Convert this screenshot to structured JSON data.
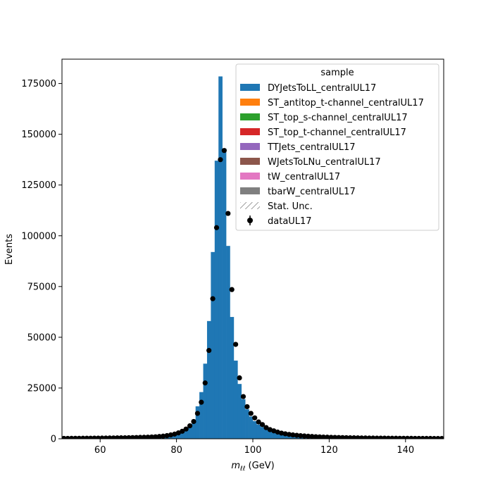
{
  "chart_data": {
    "type": "bar",
    "xlabel_main": "m",
    "xlabel_sub": "ℓℓ",
    "xlabel_unit": " (GeV)",
    "ylabel": "Events",
    "xlim": [
      50,
      150
    ],
    "ylim": [
      0,
      187000
    ],
    "bin_width": 1,
    "x_ticks": [
      60,
      80,
      100,
      120,
      140
    ],
    "y_ticks": [
      0,
      25000,
      50000,
      75000,
      100000,
      125000,
      150000,
      175000
    ],
    "legend_title": "sample",
    "legend_position": "top-right",
    "legend": [
      {
        "label": "DYJetsToLL_centralUL17",
        "kind": "patch",
        "color": "#1f77b4"
      },
      {
        "label": "ST_antitop_t-channel_centralUL17",
        "kind": "patch",
        "color": "#ff7f0e"
      },
      {
        "label": "ST_top_s-channel_centralUL17",
        "kind": "patch",
        "color": "#2ca02c"
      },
      {
        "label": "ST_top_t-channel_centralUL17",
        "kind": "patch",
        "color": "#d62728"
      },
      {
        "label": "TTJets_centralUL17",
        "kind": "patch",
        "color": "#9467bd"
      },
      {
        "label": "WJetsToLNu_centralUL17",
        "kind": "patch",
        "color": "#8c564b"
      },
      {
        "label": "tW_centralUL17",
        "kind": "patch",
        "color": "#e377c2"
      },
      {
        "label": "tbarW_centralUL17",
        "kind": "patch",
        "color": "#7f7f7f"
      },
      {
        "label": "Stat. Unc.",
        "kind": "hatch",
        "color": "#555555"
      },
      {
        "label": "dataUL17",
        "kind": "errorbar",
        "color": "#000000"
      }
    ],
    "bin_edges_start": [
      50,
      51,
      52,
      53,
      54,
      55,
      56,
      57,
      58,
      59,
      60,
      61,
      62,
      63,
      64,
      65,
      66,
      67,
      68,
      69,
      70,
      71,
      72,
      73,
      74,
      75,
      76,
      77,
      78,
      79,
      80,
      81,
      82,
      83,
      84,
      85,
      86,
      87,
      88,
      89,
      90,
      91,
      92,
      93,
      94,
      95,
      96,
      97,
      98,
      99,
      100,
      101,
      102,
      103,
      104,
      105,
      106,
      107,
      108,
      109,
      110,
      111,
      112,
      113,
      114,
      115,
      116,
      117,
      118,
      119,
      120,
      121,
      122,
      123,
      124,
      125,
      126,
      127,
      128,
      129,
      130,
      131,
      132,
      133,
      134,
      135,
      136,
      137,
      138,
      139,
      140,
      141,
      142,
      143,
      144,
      145,
      146,
      147,
      148,
      149
    ],
    "series": [
      {
        "name": "DYJetsToLL_centralUL17",
        "color": "#1f77b4",
        "values": [
          200,
          210,
          220,
          230,
          240,
          260,
          280,
          300,
          320,
          340,
          360,
          380,
          400,
          420,
          450,
          480,
          510,
          550,
          600,
          650,
          700,
          760,
          830,
          910,
          1000,
          1150,
          1350,
          1600,
          1950,
          2400,
          3000,
          3900,
          5000,
          6700,
          9500,
          16000,
          23000,
          37000,
          58000,
          92000,
          137000,
          178500,
          143000,
          95000,
          60000,
          38500,
          27000,
          19500,
          14500,
          11000,
          8700,
          7000,
          5800,
          4800,
          4000,
          3400,
          2900,
          2500,
          2200,
          1950,
          1750,
          1560,
          1400,
          1260,
          1140,
          1030,
          930,
          850,
          780,
          720,
          670,
          620,
          580,
          540,
          500,
          470,
          440,
          410,
          390,
          370,
          350,
          330,
          310,
          295,
          280,
          265,
          250,
          238,
          226,
          215,
          205,
          195,
          186,
          178,
          170,
          162,
          155,
          148,
          142,
          136
        ]
      }
    ],
    "data_series": {
      "name": "dataUL17",
      "values": [
        190,
        200,
        215,
        225,
        235,
        250,
        270,
        290,
        310,
        330,
        350,
        370,
        390,
        410,
        440,
        470,
        500,
        540,
        580,
        630,
        690,
        740,
        810,
        890,
        980,
        1120,
        1300,
        1550,
        1900,
        2300,
        2900,
        3700,
        4800,
        6400,
        8500,
        12500,
        18000,
        27500,
        43500,
        69000,
        104000,
        137500,
        142000,
        111000,
        73500,
        46500,
        30000,
        20800,
        15800,
        12500,
        10300,
        8300,
        7000,
        5500,
        4500,
        3900,
        3300,
        2800,
        2450,
        2150,
        1900,
        1700,
        1520,
        1380,
        1250,
        1130,
        1020,
        930,
        850,
        780,
        720,
        670,
        620,
        580,
        540,
        500,
        470,
        440,
        410,
        390,
        370,
        350,
        330,
        310,
        295,
        280,
        265,
        250,
        238,
        226,
        215,
        205,
        195,
        186,
        178,
        170,
        162,
        155,
        148,
        142
      ]
    }
  }
}
